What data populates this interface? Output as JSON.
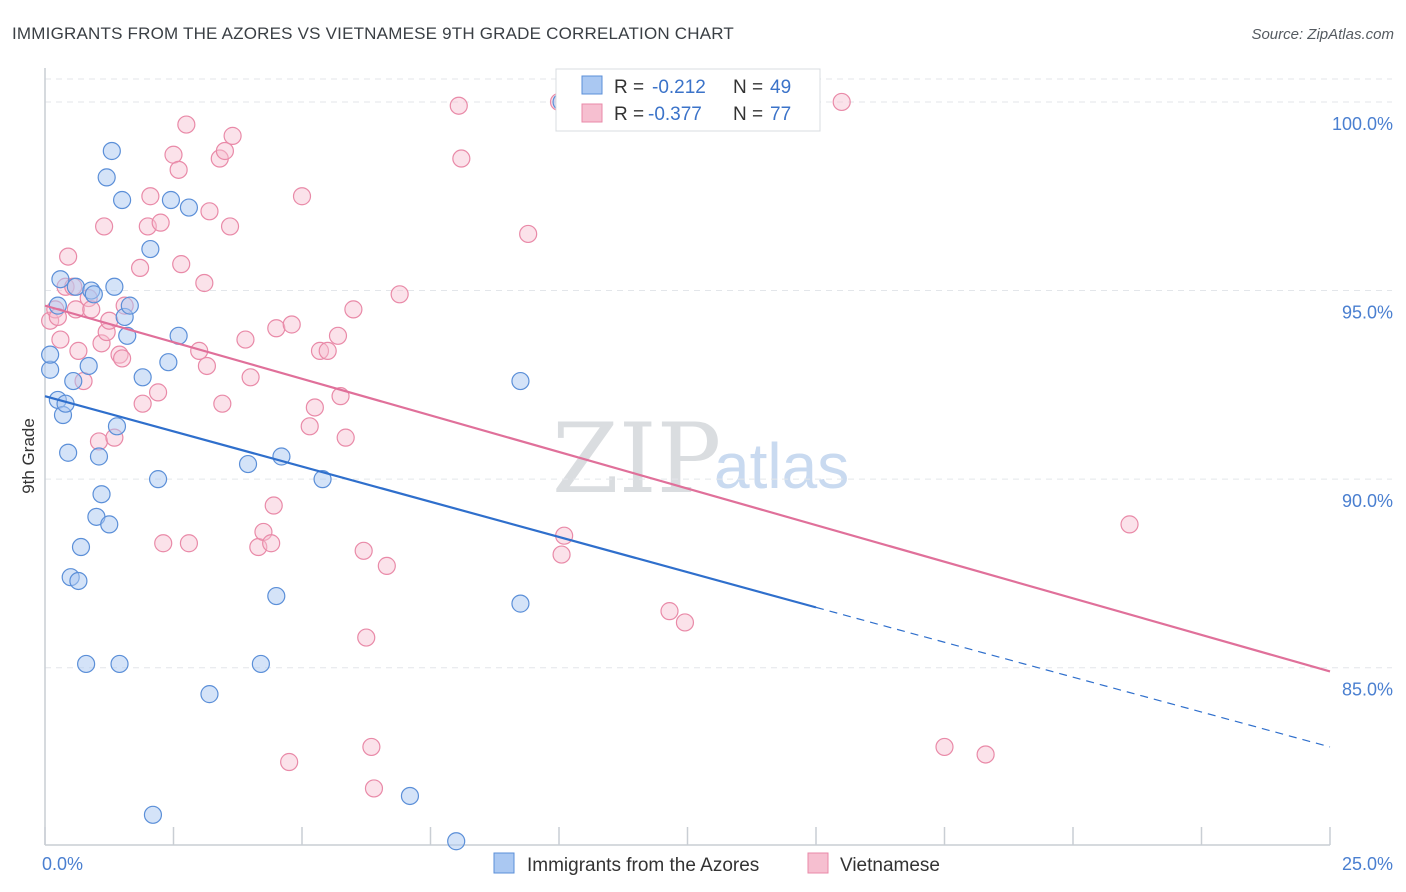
{
  "title": "IMMIGRANTS FROM THE AZORES VS VIETNAMESE 9TH GRADE CORRELATION CHART",
  "source": "Source: ZipAtlas.com",
  "watermark": {
    "zip": "ZIP",
    "atlas": "atlas"
  },
  "legend_top": [
    {
      "r_label": "R =",
      "r_value": "-0.212",
      "n_label": "N =",
      "n_value": "49"
    },
    {
      "r_label": "R =",
      "r_value": "-0.377",
      "n_label": "N =",
      "n_value": "77"
    }
  ],
  "legend_bottom": [
    "Immigrants from the Azores",
    "Vietnamese"
  ],
  "colors": {
    "azores_fill": "#aac8f2",
    "azores_stroke": "#5b8fd8",
    "azores_line": "#2f6fcc",
    "viet_fill": "#f6bfd0",
    "viet_stroke": "#e98aa8",
    "viet_line": "#e0709a",
    "tick_text": "#4a7fd0",
    "grid": "#e3e6ea"
  },
  "chart_data": {
    "type": "scatter",
    "title": "IMMIGRANTS FROM THE AZORES VS VIETNAMESE 9TH GRADE CORRELATION CHART",
    "xlabel": "",
    "ylabel": "9th Grade",
    "xlim": [
      0,
      25
    ],
    "ylim": [
      80.3,
      100.9
    ],
    "x_tick_labels": [
      "0.0%",
      "25.0%"
    ],
    "y_ticks": [
      85,
      90,
      95,
      100
    ],
    "y_tick_labels": [
      "85.0%",
      "90.0%",
      "95.0%",
      "100.0%"
    ],
    "grid": "horizontal dashed",
    "series": [
      {
        "name": "Immigrants from the Azores",
        "R": -0.212,
        "N": 49,
        "trend": {
          "x1": 0,
          "y1": 92.2,
          "x2": 15,
          "y2": 86.6,
          "dashed_to_x": 25,
          "dashed_to_y": 82.9
        },
        "points": [
          [
            0.1,
            92.9
          ],
          [
            0.1,
            93.3
          ],
          [
            0.25,
            92.1
          ],
          [
            0.25,
            94.6
          ],
          [
            0.3,
            95.3
          ],
          [
            0.35,
            91.7
          ],
          [
            0.4,
            92.0
          ],
          [
            0.45,
            90.7
          ],
          [
            0.5,
            87.4
          ],
          [
            0.55,
            92.6
          ],
          [
            0.6,
            95.1
          ],
          [
            0.65,
            87.3
          ],
          [
            0.7,
            88.2
          ],
          [
            0.8,
            85.1
          ],
          [
            0.85,
            93.0
          ],
          [
            0.9,
            95.0
          ],
          [
            0.95,
            94.9
          ],
          [
            1.0,
            89.0
          ],
          [
            1.05,
            90.6
          ],
          [
            1.1,
            89.6
          ],
          [
            1.2,
            98.0
          ],
          [
            1.25,
            88.8
          ],
          [
            1.3,
            98.7
          ],
          [
            1.35,
            95.1
          ],
          [
            1.4,
            91.4
          ],
          [
            1.45,
            85.1
          ],
          [
            1.5,
            97.4
          ],
          [
            1.55,
            94.3
          ],
          [
            1.6,
            93.8
          ],
          [
            1.65,
            94.6
          ],
          [
            1.9,
            92.7
          ],
          [
            2.05,
            96.1
          ],
          [
            2.1,
            81.1
          ],
          [
            2.2,
            90.0
          ],
          [
            2.4,
            93.1
          ],
          [
            2.45,
            97.4
          ],
          [
            2.6,
            93.8
          ],
          [
            2.8,
            97.2
          ],
          [
            3.2,
            84.3
          ],
          [
            3.95,
            90.4
          ],
          [
            4.2,
            85.1
          ],
          [
            4.5,
            86.9
          ],
          [
            4.6,
            90.6
          ],
          [
            5.4,
            90.0
          ],
          [
            7.1,
            81.6
          ],
          [
            8.0,
            80.4
          ],
          [
            9.25,
            86.7
          ],
          [
            9.25,
            92.6
          ],
          [
            10.05,
            100.0
          ]
        ]
      },
      {
        "name": "Vietnamese",
        "R": -0.377,
        "N": 77,
        "trend": {
          "x1": 0,
          "y1": 94.6,
          "x2": 25,
          "y2": 84.9
        },
        "points": [
          [
            0.1,
            94.2
          ],
          [
            0.2,
            94.5
          ],
          [
            0.25,
            94.3
          ],
          [
            0.3,
            93.7
          ],
          [
            0.4,
            95.1
          ],
          [
            0.45,
            95.9
          ],
          [
            0.55,
            95.1
          ],
          [
            0.6,
            94.5
          ],
          [
            0.65,
            93.4
          ],
          [
            0.75,
            92.6
          ],
          [
            0.85,
            94.8
          ],
          [
            0.9,
            94.5
          ],
          [
            1.05,
            91.0
          ],
          [
            1.1,
            93.6
          ],
          [
            1.15,
            96.7
          ],
          [
            1.2,
            93.9
          ],
          [
            1.25,
            94.2
          ],
          [
            1.35,
            91.1
          ],
          [
            1.45,
            93.3
          ],
          [
            1.5,
            93.2
          ],
          [
            1.55,
            94.6
          ],
          [
            1.85,
            95.6
          ],
          [
            1.9,
            92.0
          ],
          [
            2.0,
            96.7
          ],
          [
            2.05,
            97.5
          ],
          [
            2.2,
            92.3
          ],
          [
            2.25,
            96.8
          ],
          [
            2.3,
            88.3
          ],
          [
            2.5,
            98.6
          ],
          [
            2.6,
            98.2
          ],
          [
            2.65,
            95.7
          ],
          [
            2.75,
            99.4
          ],
          [
            2.8,
            88.3
          ],
          [
            3.0,
            93.4
          ],
          [
            3.1,
            95.2
          ],
          [
            3.15,
            93.0
          ],
          [
            3.2,
            97.1
          ],
          [
            3.4,
            98.5
          ],
          [
            3.45,
            92.0
          ],
          [
            3.5,
            98.7
          ],
          [
            3.6,
            96.7
          ],
          [
            3.65,
            99.1
          ],
          [
            3.9,
            93.7
          ],
          [
            4.0,
            92.7
          ],
          [
            4.15,
            88.2
          ],
          [
            4.25,
            88.6
          ],
          [
            4.4,
            88.3
          ],
          [
            4.45,
            89.3
          ],
          [
            4.5,
            94.0
          ],
          [
            4.75,
            82.5
          ],
          [
            4.8,
            94.1
          ],
          [
            5.0,
            97.5
          ],
          [
            5.15,
            91.4
          ],
          [
            5.25,
            91.9
          ],
          [
            5.35,
            93.4
          ],
          [
            5.5,
            93.4
          ],
          [
            5.7,
            93.8
          ],
          [
            5.75,
            92.2
          ],
          [
            5.85,
            91.1
          ],
          [
            6.0,
            94.5
          ],
          [
            6.2,
            88.1
          ],
          [
            6.25,
            85.8
          ],
          [
            6.35,
            82.9
          ],
          [
            6.4,
            81.8
          ],
          [
            6.65,
            87.7
          ],
          [
            6.9,
            94.9
          ],
          [
            8.05,
            99.9
          ],
          [
            8.1,
            98.5
          ],
          [
            9.4,
            96.5
          ],
          [
            10.0,
            100.0
          ],
          [
            10.05,
            88.0
          ],
          [
            10.1,
            88.5
          ],
          [
            12.15,
            86.5
          ],
          [
            12.45,
            86.2
          ],
          [
            15.5,
            100.0
          ],
          [
            17.5,
            82.9
          ],
          [
            18.3,
            82.7
          ],
          [
            21.1,
            88.8
          ]
        ]
      }
    ]
  }
}
